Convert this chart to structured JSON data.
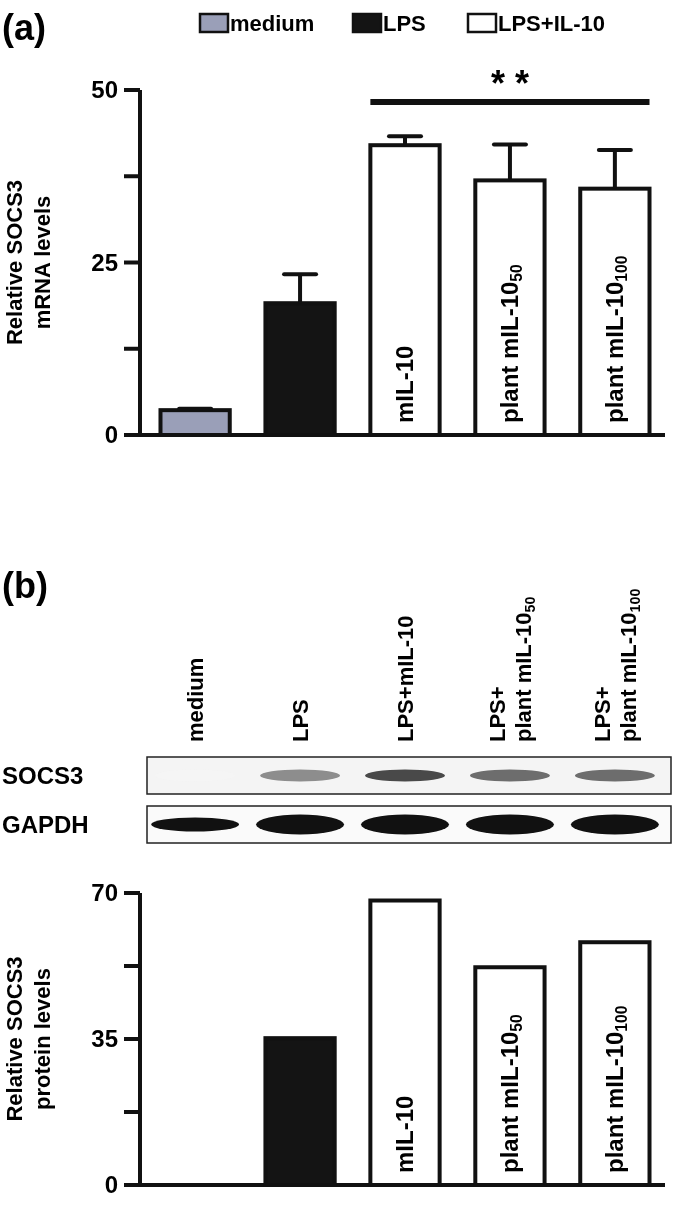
{
  "chart_data": [
    {
      "type": "bar",
      "title": "(a)",
      "ylabel": "Relative SOCS3\nmRNA levels",
      "categories": [
        null,
        null,
        "mIL-10",
        "plant mIL-10$_{50}$",
        "plant mIL-10$_{100}$"
      ],
      "ylim": [
        0,
        50
      ],
      "yticks": [
        0,
        {
          "value": 12.5,
          "label": null
        },
        25,
        {
          "value": 37.5,
          "label": null
        },
        50
      ],
      "legend": "top",
      "annotations": [
        "* *"
      ],
      "series": [
        {
          "name": "medium",
          "color": "#9a9fb8",
          "values": [
            3.6,
            null,
            null,
            null,
            null
          ],
          "errors": [
            [
              3.6,
              3.8
            ],
            null,
            null,
            null,
            null
          ]
        },
        {
          "name": "LPS",
          "color": "#141414",
          "values": [
            null,
            19.1,
            null,
            null,
            null
          ],
          "errors": [
            null,
            [
              19.1,
              23.3
            ],
            null,
            null,
            null
          ]
        },
        {
          "name": "LPS+IL-10",
          "color": "#ffffff",
          "values": [
            null,
            null,
            42.0,
            36.9,
            35.7
          ],
          "errors": [
            null,
            null,
            [
              42.0,
              43.3
            ],
            [
              36.9,
              42.1
            ],
            [
              35.7,
              41.3
            ]
          ]
        }
      ]
    },
    {
      "type": "bar",
      "title": "(b)",
      "ylabel": "Relative SOCS3\nprotein levels",
      "categories": [
        null,
        null,
        "mIL-10",
        "plant mIL-10$_{50}$",
        "plant mIL-10$_{100}$"
      ],
      "ylim": [
        0,
        70
      ],
      "yticks": [
        0,
        {
          "value": 17.5,
          "label": null
        },
        35,
        {
          "value": 52.5,
          "label": null
        },
        70
      ],
      "annotations": [
        "medium",
        "LPS",
        "LPS+mIL-10",
        "LPS+\nplant mIL-10$_{50}$",
        "LPS+\nplant mIL-10$_{100}$",
        "SOCS3",
        "GAPDH"
      ],
      "values": [
        0,
        35.2,
        68.2,
        52.2,
        58.2
      ],
      "colors": [
        "#9a9fb8",
        "#141414",
        "#ffffff",
        "#ffffff",
        "#ffffff"
      ]
    }
  ]
}
